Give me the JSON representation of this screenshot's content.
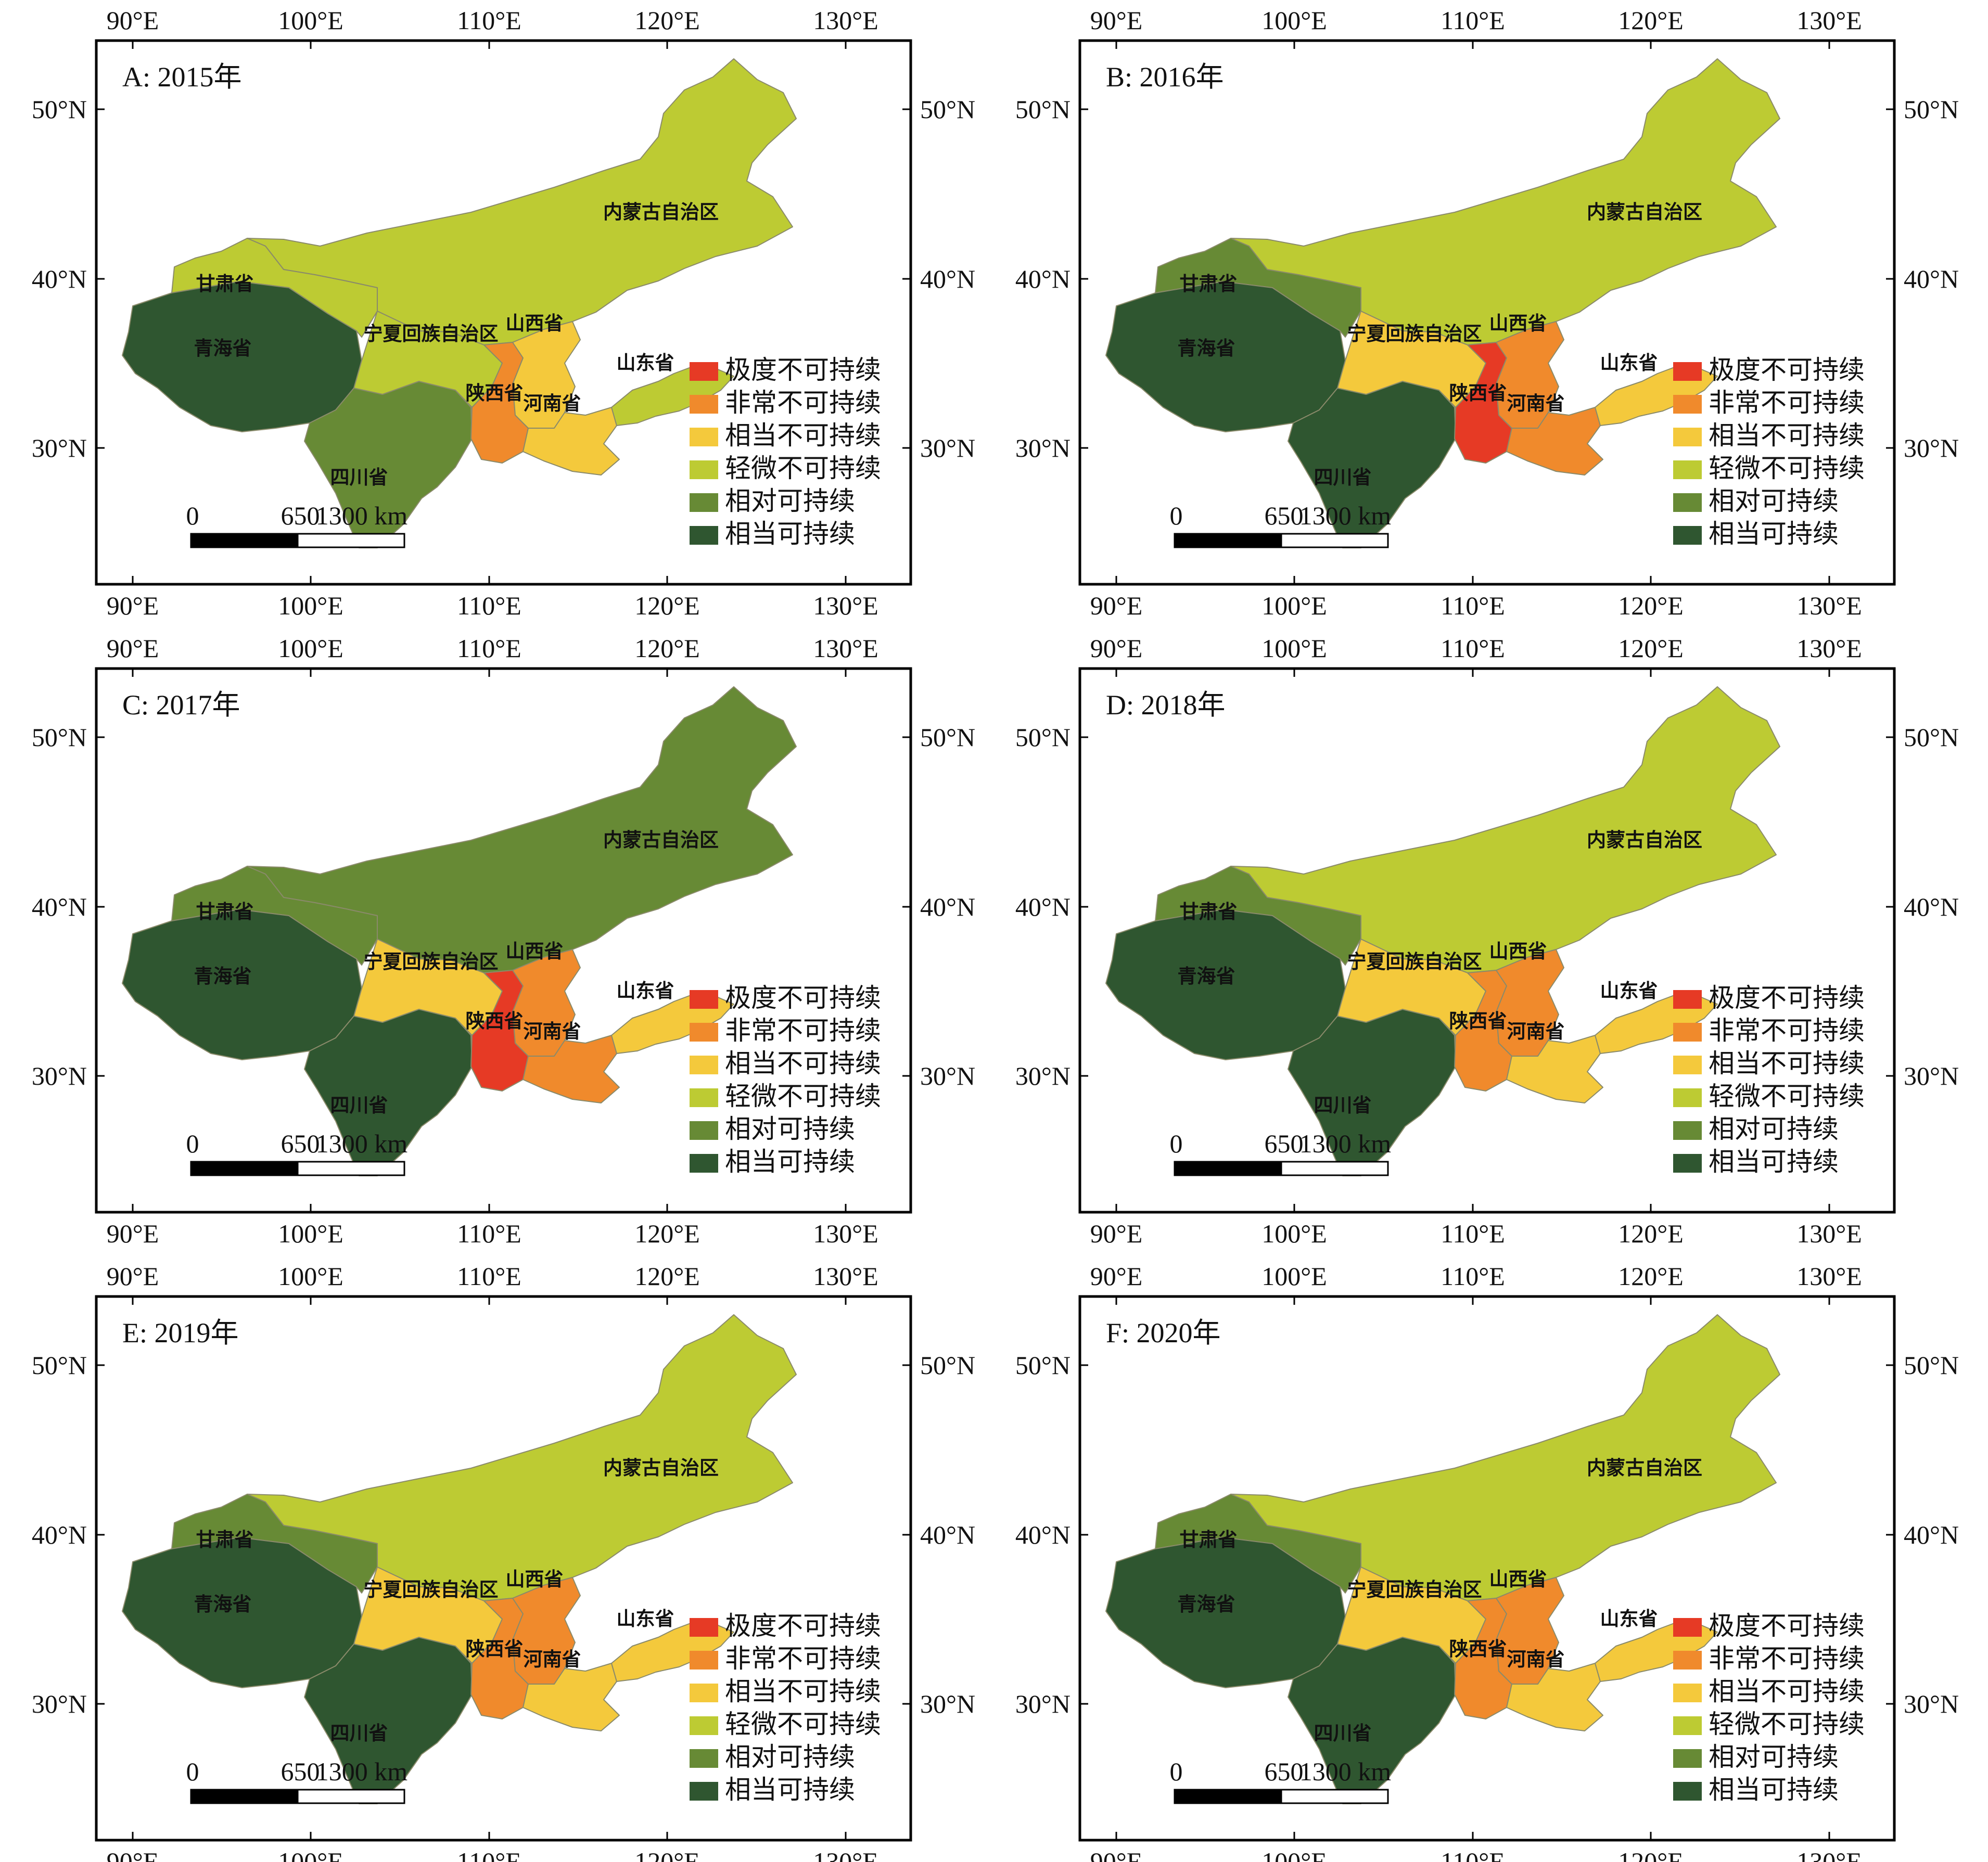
{
  "axes": {
    "lon_ticks": [
      "90°E",
      "100°E",
      "110°E",
      "120°E",
      "130°E"
    ],
    "lat_ticks": [
      "50°N",
      "40°N",
      "30°N"
    ]
  },
  "legend": [
    {
      "key": "extreme",
      "label": "极度不可持续",
      "color": "#e63a25"
    },
    {
      "key": "very",
      "label": "非常不可持续",
      "color": "#f08a2c"
    },
    {
      "key": "fairly",
      "label": "相当不可持续",
      "color": "#f4c93c"
    },
    {
      "key": "slight",
      "label": "轻微不可持续",
      "color": "#bdcb33"
    },
    {
      "key": "relative",
      "label": "相对可持续",
      "color": "#678a35"
    },
    {
      "key": "quite",
      "label": "相当可持续",
      "color": "#2f5630"
    }
  ],
  "scale_bar": {
    "labels": [
      "0",
      "650",
      "1300 km"
    ]
  },
  "provinces": [
    {
      "id": "qinghai",
      "name": "青海省"
    },
    {
      "id": "gansu",
      "name": "甘肃省"
    },
    {
      "id": "sichuan",
      "name": "四川省"
    },
    {
      "id": "ningxia",
      "name": "宁夏回族自治区"
    },
    {
      "id": "neimenggu",
      "name": "内蒙古自治区"
    },
    {
      "id": "shaanxi",
      "name": "陕西省"
    },
    {
      "id": "shanxi",
      "name": "山西省"
    },
    {
      "id": "henan",
      "name": "河南省"
    },
    {
      "id": "shandong",
      "name": "山东省"
    }
  ],
  "panels": [
    {
      "title": "A: 2015年",
      "classes": {
        "qinghai": "quite",
        "gansu": "slight",
        "sichuan": "relative",
        "ningxia": "slight",
        "neimenggu": "slight",
        "shaanxi": "very",
        "shanxi": "fairly",
        "henan": "fairly",
        "shandong": "slight"
      }
    },
    {
      "title": "B: 2016年",
      "classes": {
        "qinghai": "quite",
        "gansu": "relative",
        "sichuan": "quite",
        "ningxia": "fairly",
        "neimenggu": "slight",
        "shaanxi": "extreme",
        "shanxi": "very",
        "henan": "very",
        "shandong": "fairly"
      }
    },
    {
      "title": "C: 2017年",
      "classes": {
        "qinghai": "quite",
        "gansu": "relative",
        "sichuan": "quite",
        "ningxia": "fairly",
        "neimenggu": "relative",
        "shaanxi": "extreme",
        "shanxi": "very",
        "henan": "very",
        "shandong": "fairly"
      }
    },
    {
      "title": "D: 2018年",
      "classes": {
        "qinghai": "quite",
        "gansu": "relative",
        "sichuan": "quite",
        "ningxia": "fairly",
        "neimenggu": "slight",
        "shaanxi": "very",
        "shanxi": "very",
        "henan": "fairly",
        "shandong": "fairly"
      }
    },
    {
      "title": "E: 2019年",
      "classes": {
        "qinghai": "quite",
        "gansu": "relative",
        "sichuan": "quite",
        "ningxia": "fairly",
        "neimenggu": "slight",
        "shaanxi": "very",
        "shanxi": "very",
        "henan": "fairly",
        "shandong": "fairly"
      }
    },
    {
      "title": "F: 2020年",
      "classes": {
        "qinghai": "quite",
        "gansu": "relative",
        "sichuan": "quite",
        "ningxia": "fairly",
        "neimenggu": "slight",
        "shaanxi": "very",
        "shanxi": "very",
        "henan": "fairly",
        "shandong": "fairly"
      }
    }
  ]
}
